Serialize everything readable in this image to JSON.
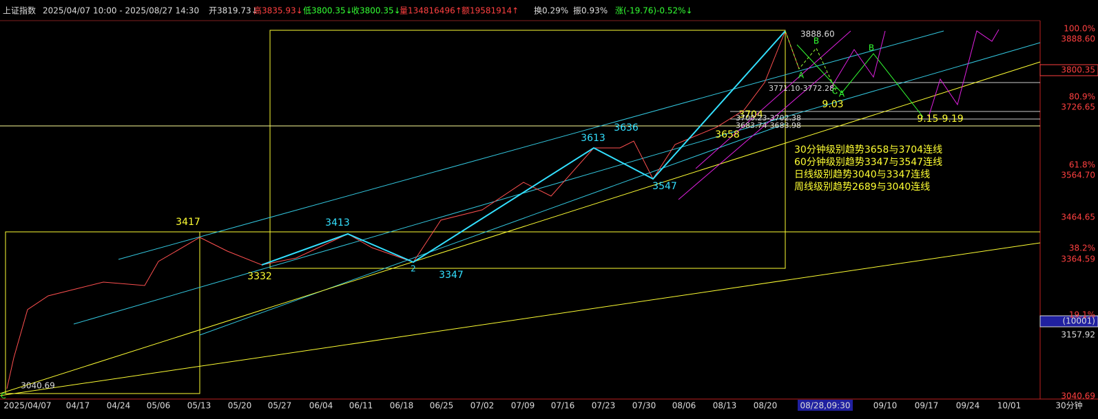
{
  "header": {
    "items": [
      "上证指数",
      "2025/04/07 10:00 - 2025/08/27 14:30",
      "开3819.73↓",
      "高3835.93↓",
      "低3800.35↓",
      "收3800.35↓",
      "量134816496↑",
      "额19581914↑",
      "换0.29%",
      "振0.93%",
      "涨(-19.76)-0.52%↓"
    ]
  },
  "right_axis": {
    "labels": [
      "100.0%",
      "3888.60",
      "3800.35",
      "80.9%",
      "3726.65",
      "61.8%",
      "3564.70",
      "3464.65",
      "38.2%",
      "3364.59",
      "19.1%",
      "(10001)",
      "3157.92",
      "3040.69"
    ]
  },
  "x_axis": {
    "labels": [
      "2025/04/07",
      "04/17",
      "04/24",
      "05/06",
      "05/13",
      "05/20",
      "05/27",
      "06/04",
      "06/11",
      "06/18",
      "06/25",
      "07/02",
      "07/09",
      "07/16",
      "07/23",
      "07/30",
      "08/06",
      "08/13",
      "08/20",
      "08/28,09:30",
      "09/10",
      "09/17",
      "09/24",
      "10/01"
    ],
    "period": "30分钟"
  },
  "annotations": [
    "3417",
    "3332",
    "3413",
    "2",
    "3347",
    "3613",
    "3636",
    "3547",
    "3658",
    "3704",
    "3888.60",
    "3771.10-3772.28",
    "3700.23-3702.38",
    "3683.74-3683.98",
    "9.03",
    "9.15-9.19",
    "3040.69",
    "A",
    "B",
    "C",
    "A",
    "B",
    "C"
  ],
  "notes": [
    "30分钟级别趋势3658与3704连线",
    "60分钟级别趋势3347与3547连线",
    "日线级别趋势3040与3347连线",
    "周线级别趋势2689与3040连线"
  ]
}
